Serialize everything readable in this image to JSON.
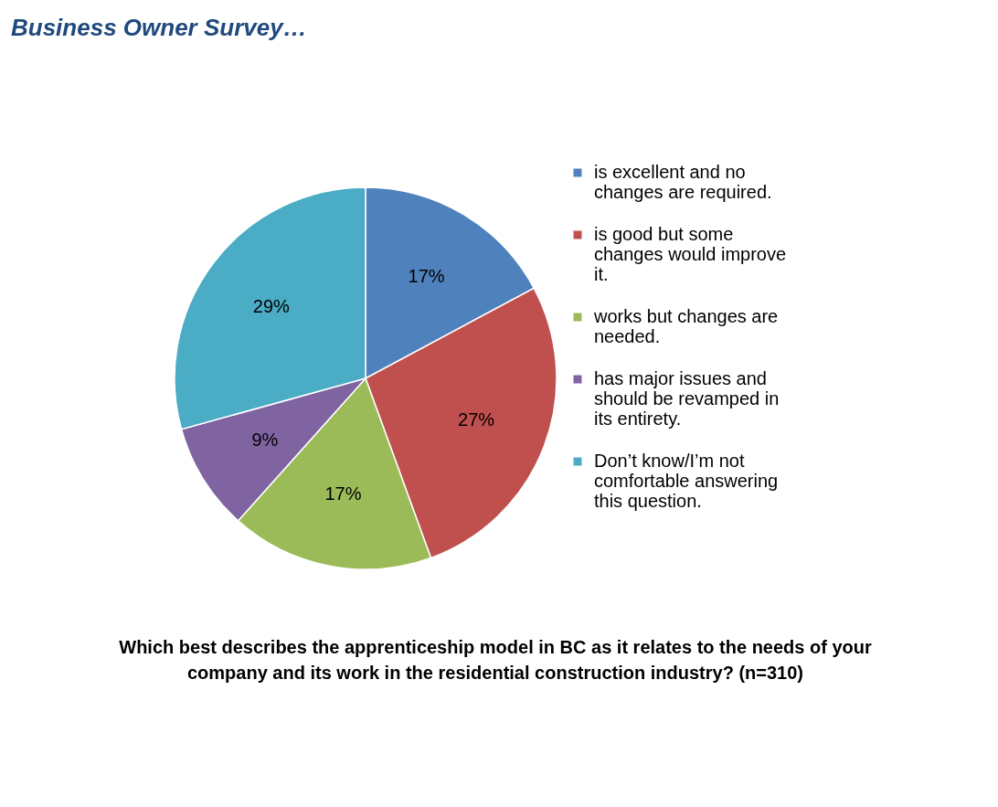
{
  "chart_data": {
    "type": "pie",
    "title": "Business Owner Survey…",
    "categories": [
      "is excellent and no changes are required.",
      "is good but some changes would improve it.",
      "works but changes are needed.",
      "has major issues and should be revamped in its entirety.",
      "Don’t know/I’m not comfortable answering this question."
    ],
    "values": [
      17,
      27,
      17,
      9,
      29
    ],
    "colors": [
      "#4f81bd",
      "#c0504d",
      "#9bbb59",
      "#8064a2",
      "#4bacc6"
    ],
    "value_labels": [
      "17%",
      "27%",
      "17%",
      "9%",
      "29%"
    ],
    "legend": "right",
    "annotations": [
      "Which best describes the apprenticeship model in BC as it relates to the needs of your company and its work in the residential construction industry? (n=310)"
    ]
  }
}
